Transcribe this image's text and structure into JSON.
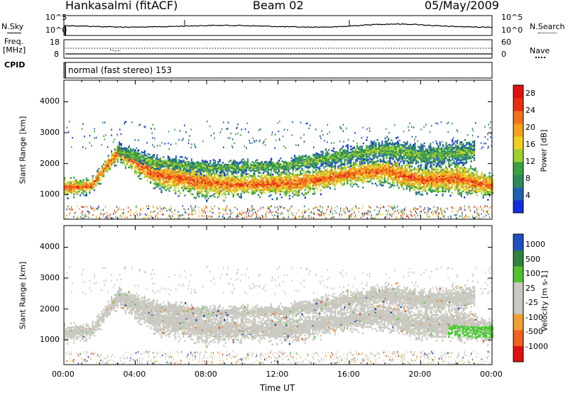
{
  "header": {
    "station": "Hankasalmi (fitACF)",
    "beam": "Beam 02",
    "date": "05/May/2009"
  },
  "strip_labels": {
    "nsky": "N.Sky",
    "freq": "Freq.",
    "freq_unit": "[MHz]",
    "cpid": "CPID",
    "nsearch": "N.Search",
    "nave": "Nave",
    "nsky_hi": "10^5",
    "nsky_lo": "10^0",
    "nsearch_hi": "10^5",
    "nsearch_lo": "10^0",
    "freq_hi": "18",
    "freq_lo": "8",
    "nave_hi": "60",
    "nave_lo": "0",
    "cpid_text": "normal (fast stereo) 153"
  },
  "colors": {
    "power_scale": [
      "#1030e0",
      "#2060b0",
      "#2e8a5c",
      "#3aa040",
      "#9ad030",
      "#f0d020",
      "#f5a020",
      "#f07020",
      "#e83010",
      "#e01010"
    ],
    "velocity_scale": [
      "#e01010",
      "#f06020",
      "#f0a030",
      "#c8c8c0",
      "#c8c8c0",
      "#50c030",
      "#308040",
      "#2050c0"
    ],
    "velocity_grey": "#c8c8c0",
    "scatter_red": "#e23a10",
    "scatter_orange": "#f08a20",
    "scatter_yellow": "#e8c830",
    "scatter_green": "#3a9a50",
    "scatter_blue": "#1a3ab0",
    "scatter_green_bright": "#48c830"
  },
  "chart_data": [
    {
      "type": "heatmap",
      "title": "Power",
      "ylabel": "Slant Range [km]",
      "xlabel": "",
      "x_range_hours": [
        0,
        24
      ],
      "ylim_km": [
        200,
        4700
      ],
      "y_ticks": [
        "1000",
        "2000",
        "3000",
        "4000"
      ],
      "colorbar": {
        "label": "Power [dB]",
        "ticks": [
          "4",
          "8",
          "12",
          "16",
          "20",
          "24",
          "28"
        ],
        "range": [
          0,
          30
        ]
      },
      "echo_bands": [
        {
          "name": "main_band",
          "points_hours": [
            0,
            1.5,
            3,
            5,
            8,
            10,
            13,
            16,
            18,
            20,
            22,
            24
          ],
          "center_km": [
            1250,
            1300,
            2400,
            1700,
            1400,
            1350,
            1400,
            1700,
            1800,
            1500,
            1550,
            1300
          ],
          "halfwidth_km": [
            200,
            150,
            200,
            300,
            350,
            250,
            300,
            250,
            300,
            300,
            350,
            250
          ],
          "peak_power_db": 24
        },
        {
          "name": "upper_band",
          "points_hours": [
            3,
            5,
            8,
            12,
            16,
            18,
            20,
            23
          ],
          "center_km": [
            2450,
            2100,
            1900,
            1950,
            2300,
            2500,
            2300,
            2400
          ],
          "halfwidth_km": [
            150,
            150,
            150,
            150,
            200,
            250,
            250,
            250
          ],
          "peak_power_db": 12
        }
      ]
    },
    {
      "type": "heatmap",
      "title": "Velocity",
      "ylabel": "Slant Range [km]",
      "xlabel": "Time UT",
      "x_ticks": [
        "00:00",
        "04:00",
        "08:00",
        "12:00",
        "16:00",
        "20:00",
        "00:00"
      ],
      "x_range_hours": [
        0,
        24
      ],
      "ylim_km": [
        200,
        4700
      ],
      "y_ticks": [
        "1000",
        "2000",
        "3000",
        "4000"
      ],
      "colorbar": {
        "label": "Velocity [m s-1]",
        "ticks": [
          "1000",
          "500",
          "100",
          "25",
          "-25",
          "-100",
          "-500",
          "-1000"
        ]
      },
      "dominant_velocity": "-25 to 25",
      "feature": {
        "hours": [
          21.5,
          24
        ],
        "km": [
          1100,
          1500
        ],
        "velocity": "100"
      }
    }
  ]
}
